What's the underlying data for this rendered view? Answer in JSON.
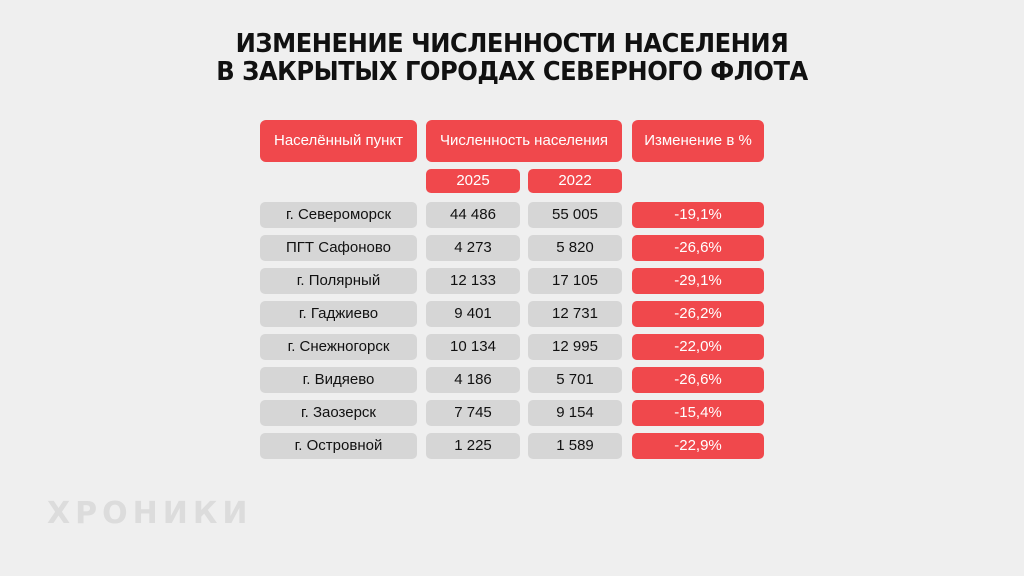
{
  "title": {
    "line1": "ИЗМЕНЕНИЕ ЧИСЛЕННОСТИ НАСЕЛЕНИЯ",
    "line2": "В ЗАКРЫТЫХ ГОРОДАХ СЕВЕРНОГО ФЛОТА"
  },
  "headers": {
    "name": "Населённый пункт",
    "population": "Численность населения",
    "change": "Изменение в %",
    "year1": "2025",
    "year2": "2022"
  },
  "colors": {
    "accent": "#f0484c",
    "cell": "#d6d6d6",
    "background": "#efefef"
  },
  "chart_data": {
    "type": "table",
    "columns": [
      "Населённый пункт",
      "2025",
      "2022",
      "Изменение в %"
    ],
    "rows": [
      {
        "name": "г. Североморск",
        "y2025": "44 486",
        "y2022": "55 005",
        "change": "-19,1%"
      },
      {
        "name": "ПГТ Сафоново",
        "y2025": "4 273",
        "y2022": "5 820",
        "change": "-26,6%"
      },
      {
        "name": "г. Полярный",
        "y2025": "12 133",
        "y2022": "17 105",
        "change": "-29,1%"
      },
      {
        "name": "г. Гаджиево",
        "y2025": "9 401",
        "y2022": "12 731",
        "change": "-26,2%"
      },
      {
        "name": "г. Снежногорск",
        "y2025": "10 134",
        "y2022": "12 995",
        "change": "-22,0%"
      },
      {
        "name": "г. Видяево",
        "y2025": "4 186",
        "y2022": "5 701",
        "change": "-26,6%"
      },
      {
        "name": "г. Заозерск",
        "y2025": "7 745",
        "y2022": "9 154",
        "change": "-15,4%"
      },
      {
        "name": "г. Островной",
        "y2025": "1 225",
        "y2022": "1 589",
        "change": "-22,9%"
      }
    ]
  },
  "logo": "ХРОНИКИ"
}
